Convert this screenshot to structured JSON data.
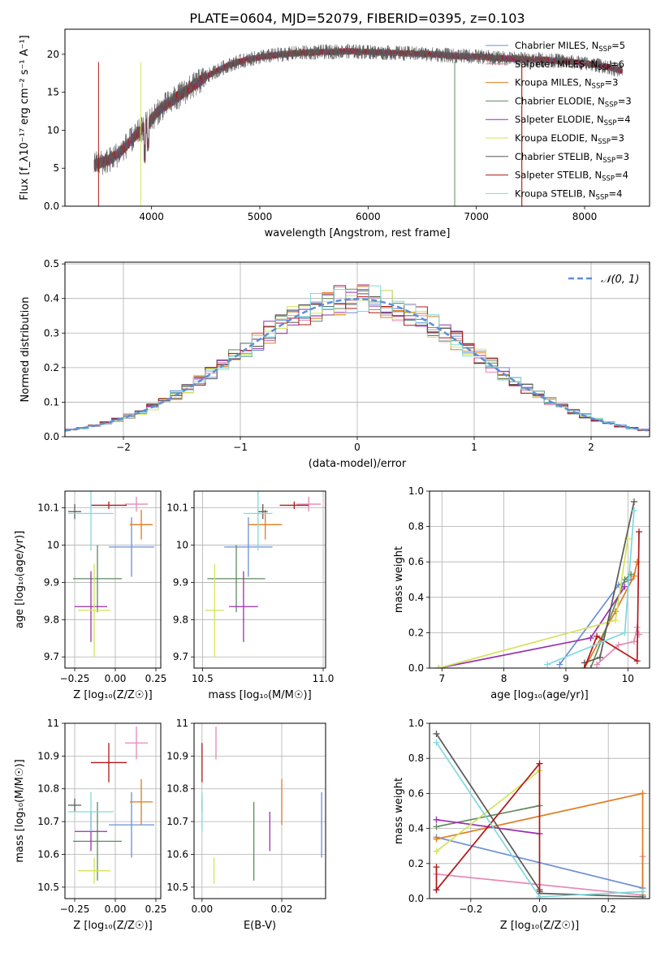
{
  "figure": {
    "title": "PLATE=0604, MJD=52079, FIBERID=0395, z=0.103"
  },
  "colors": {
    "Chabrier MILES": "#6b8fd6",
    "Salpeter MILES": "#e588b5",
    "Kroupa MILES": "#e07b1f",
    "Chabrier ELODIE": "#5f8a5f",
    "Salpeter ELODIE": "#9b2fae",
    "Kroupa ELODIE": "#d4e35a",
    "Chabrier STELIB": "#5a5a5a",
    "Salpeter STELIB": "#b01818",
    "Kroupa STELIB": "#7fd9dd"
  },
  "chart_data": [
    {
      "id": "spectrum",
      "type": "line",
      "xlabel": "wavelength [Angstrom, rest frame]",
      "ylabel": "Flux [f_λ10⁻¹⁷ erg cm⁻² s⁻¹ A⁻¹]",
      "xlim": [
        3200,
        8600
      ],
      "ylim": [
        0,
        23.3
      ],
      "xticks": [
        4000,
        5000,
        6000,
        7000,
        8000
      ],
      "yticks": [
        0,
        5,
        10,
        15,
        20
      ],
      "legend_position": "right",
      "grid": false,
      "continuum": {
        "x": [
          3470,
          3600,
          3700,
          3800,
          3900,
          4000,
          4100,
          4200,
          4300,
          4400,
          4500,
          4600,
          4700,
          4800,
          4900,
          5000,
          5200,
          5400,
          5600,
          5800,
          6000,
          6200,
          6400,
          6600,
          6800,
          7000,
          7200,
          7400,
          7600,
          7800,
          8000,
          8200,
          8350
        ],
        "y": [
          5.5,
          6.0,
          7.0,
          8.5,
          10.0,
          11.5,
          13.0,
          14.0,
          15.0,
          16.0,
          17.0,
          17.8,
          18.5,
          19.0,
          19.3,
          19.6,
          20.0,
          20.2,
          20.3,
          20.4,
          20.3,
          20.2,
          20.1,
          20.0,
          19.8,
          19.7,
          19.5,
          19.4,
          19.3,
          19.1,
          18.8,
          18.4,
          17.8
        ]
      },
      "series": [
        {
          "name": "Chabrier MILES",
          "nssp": "5"
        },
        {
          "name": "Salpeter MILES",
          "nssp": "6"
        },
        {
          "name": "Kroupa MILES",
          "nssp": "3"
        },
        {
          "name": "Chabrier ELODIE",
          "nssp": "3"
        },
        {
          "name": "Salpeter ELODIE",
          "nssp": "4"
        },
        {
          "name": "Kroupa ELODIE",
          "nssp": "3"
        },
        {
          "name": "Chabrier STELIB",
          "nssp": "3"
        },
        {
          "name": "Salpeter STELIB",
          "nssp": "4"
        },
        {
          "name": "Kroupa STELIB",
          "nssp": "4"
        }
      ]
    },
    {
      "id": "residuals",
      "type": "line",
      "xlabel": "(data-model)/error",
      "ylabel": "Normed distribution",
      "xlim": [
        -2.5,
        2.5
      ],
      "ylim": [
        0,
        0.505
      ],
      "xticks": [
        -2,
        -1,
        0,
        1,
        2
      ],
      "yticks": [
        0.0,
        0.1,
        0.2,
        0.3,
        0.4,
        0.5
      ],
      "grid": true,
      "gaussian_label": "𝒩(0, 1)",
      "bin_width": 0.1,
      "bin_start": -2.5
    },
    {
      "id": "age_vs_Z",
      "type": "scatter",
      "xlabel": "Z [log₁₀(Z/Z☉)]",
      "ylabel": "age  [log₁₀(age/yr)]",
      "xlim": [
        -0.31,
        0.28
      ],
      "ylim": [
        9.67,
        10.145
      ],
      "xticks": [
        -0.25,
        0.0,
        0.25
      ],
      "xtick_labels": [
        "−0.25",
        "0.00",
        "0.25"
      ],
      "yticks": [
        9.7,
        9.8,
        9.9,
        10.0,
        10.1
      ],
      "grid": true,
      "points": [
        {
          "series": "Chabrier MILES",
          "x": 0.1,
          "xerr": 0.14,
          "y": 9.995,
          "yerr": 0.08
        },
        {
          "series": "Salpeter MILES",
          "x": 0.13,
          "xerr": 0.07,
          "y": 10.11,
          "yerr": 0.02
        },
        {
          "series": "Kroupa MILES",
          "x": 0.16,
          "xerr": 0.07,
          "y": 10.055,
          "yerr": 0.04
        },
        {
          "series": "Chabrier ELODIE",
          "x": -0.11,
          "xerr": 0.15,
          "y": 9.91,
          "yerr": 0.09
        },
        {
          "series": "Salpeter ELODIE",
          "x": -0.15,
          "xerr": 0.1,
          "y": 9.835,
          "yerr": 0.095
        },
        {
          "series": "Kroupa ELODIE",
          "x": -0.13,
          "xerr": 0.1,
          "y": 9.825,
          "yerr": 0.125
        },
        {
          "series": "Chabrier STELIB",
          "x": -0.25,
          "xerr": 0.04,
          "y": 10.09,
          "yerr": 0.02
        },
        {
          "series": "Salpeter STELIB",
          "x": -0.04,
          "xerr": 0.11,
          "y": 10.107,
          "yerr": 0.01
        },
        {
          "series": "Kroupa STELIB",
          "x": -0.15,
          "xerr": 0.14,
          "y": 10.085,
          "yerr": 0.1
        }
      ]
    },
    {
      "id": "age_vs_mass",
      "type": "scatter",
      "xlabel": "mass [log₁₀(M/M☉)]",
      "ylabel": "",
      "xlim": [
        10.465,
        11.01
      ],
      "ylim": [
        9.67,
        10.145
      ],
      "xticks": [
        10.5,
        11.0
      ],
      "xtick_labels": [
        "10.5",
        "11.0"
      ],
      "yticks": [
        9.7,
        9.8,
        9.9,
        10.0,
        10.1
      ],
      "grid": true,
      "points": [
        {
          "series": "Chabrier MILES",
          "x": 10.69,
          "xerr": 0.1,
          "y": 9.995,
          "yerr": 0.08
        },
        {
          "series": "Salpeter MILES",
          "x": 10.94,
          "xerr": 0.05,
          "y": 10.11,
          "yerr": 0.02
        },
        {
          "series": "Kroupa MILES",
          "x": 10.76,
          "xerr": 0.07,
          "y": 10.055,
          "yerr": 0.04
        },
        {
          "series": "Chabrier ELODIE",
          "x": 10.64,
          "xerr": 0.12,
          "y": 9.91,
          "yerr": 0.09
        },
        {
          "series": "Salpeter ELODIE",
          "x": 10.67,
          "xerr": 0.06,
          "y": 9.835,
          "yerr": 0.095
        },
        {
          "series": "Kroupa ELODIE",
          "x": 10.55,
          "xerr": 0.04,
          "y": 9.825,
          "yerr": 0.125
        },
        {
          "series": "Chabrier STELIB",
          "x": 10.75,
          "xerr": 0.02,
          "y": 10.09,
          "yerr": 0.02
        },
        {
          "series": "Salpeter STELIB",
          "x": 10.88,
          "xerr": 0.06,
          "y": 10.107,
          "yerr": 0.01
        },
        {
          "series": "Kroupa STELIB",
          "x": 10.73,
          "xerr": 0.06,
          "y": 10.085,
          "yerr": 0.1
        }
      ]
    },
    {
      "id": "massweight_vs_age",
      "type": "line",
      "xlabel": "age  [log₁₀(age/yr)]",
      "ylabel": "mass weight",
      "xlim": [
        6.8,
        10.35
      ],
      "ylim": [
        0,
        1.0
      ],
      "xticks": [
        7,
        8,
        9,
        10
      ],
      "yticks": [
        0.0,
        0.2,
        0.4,
        0.6,
        0.8,
        1.0
      ],
      "grid": true,
      "series": [
        {
          "name": "Chabrier MILES",
          "x": [
            8.9,
            9.85,
            10.05
          ],
          "y": [
            0.02,
            0.47,
            0.5
          ]
        },
        {
          "name": "Salpeter MILES",
          "x": [
            9.5,
            9.85,
            10.1,
            10.15,
            10.18
          ],
          "y": [
            0.02,
            0.13,
            0.15,
            0.23,
            0.19
          ]
        },
        {
          "name": "Kroupa MILES",
          "x": [
            9.3,
            9.8,
            10.1,
            10.15
          ],
          "y": [
            0.0,
            0.32,
            0.52,
            0.6
          ]
        },
        {
          "name": "Chabrier ELODIE",
          "x": [
            9.4,
            9.95,
            10.05
          ],
          "y": [
            0.0,
            0.5,
            0.53
          ]
        },
        {
          "name": "Salpeter ELODIE",
          "x": [
            6.95,
            9.4,
            9.95
          ],
          "y": [
            0.0,
            0.17,
            0.46
          ]
        },
        {
          "name": "Kroupa ELODIE",
          "x": [
            6.95,
            9.8,
            10.0
          ],
          "y": [
            0.0,
            0.27,
            0.73
          ]
        },
        {
          "name": "Chabrier STELIB",
          "x": [
            9.3,
            9.55,
            10.1
          ],
          "y": [
            0.03,
            0.06,
            0.94
          ]
        },
        {
          "name": "Salpeter STELIB",
          "x": [
            9.3,
            9.5,
            10.15,
            10.18
          ],
          "y": [
            0.0,
            0.18,
            0.04,
            0.77
          ]
        },
        {
          "name": "Kroupa STELIB",
          "x": [
            8.7,
            9.95,
            10.1
          ],
          "y": [
            0.02,
            0.2,
            0.89
          ]
        }
      ]
    },
    {
      "id": "mass_vs_Z",
      "type": "scatter",
      "xlabel": "Z [log₁₀(Z/Z☉)]",
      "ylabel": "mass [log₁₀(M/M☉)]",
      "xlim": [
        -0.31,
        0.28
      ],
      "ylim": [
        10.465,
        11.0
      ],
      "xticks": [
        -0.25,
        0.0,
        0.25
      ],
      "xtick_labels": [
        "−0.25",
        "0.00",
        "0.25"
      ],
      "yticks": [
        10.5,
        10.6,
        10.7,
        10.8,
        10.9,
        11.0
      ],
      "grid": true,
      "points": [
        {
          "series": "Chabrier MILES",
          "x": 0.1,
          "xerr": 0.14,
          "y": 10.69,
          "yerr": 0.1
        },
        {
          "series": "Salpeter MILES",
          "x": 0.13,
          "xerr": 0.07,
          "y": 10.94,
          "yerr": 0.05
        },
        {
          "series": "Kroupa MILES",
          "x": 0.16,
          "xerr": 0.07,
          "y": 10.76,
          "yerr": 0.07
        },
        {
          "series": "Chabrier ELODIE",
          "x": -0.11,
          "xerr": 0.15,
          "y": 10.64,
          "yerr": 0.12
        },
        {
          "series": "Salpeter ELODIE",
          "x": -0.15,
          "xerr": 0.1,
          "y": 10.67,
          "yerr": 0.06
        },
        {
          "series": "Kroupa ELODIE",
          "x": -0.13,
          "xerr": 0.1,
          "y": 10.55,
          "yerr": 0.04
        },
        {
          "series": "Chabrier STELIB",
          "x": -0.25,
          "xerr": 0.04,
          "y": 10.75,
          "yerr": 0.02
        },
        {
          "series": "Salpeter STELIB",
          "x": -0.04,
          "xerr": 0.11,
          "y": 10.88,
          "yerr": 0.06
        },
        {
          "series": "Kroupa STELIB",
          "x": -0.15,
          "xerr": 0.14,
          "y": 10.73,
          "yerr": 0.06
        }
      ]
    },
    {
      "id": "mass_vs_ebv",
      "type": "scatter",
      "xlabel": "E(B-V)",
      "ylabel": "",
      "xlim": [
        -0.002,
        0.031
      ],
      "ylim": [
        10.465,
        11.0
      ],
      "xticks": [
        0.0,
        0.02
      ],
      "xtick_labels": [
        "0.00",
        "0.02"
      ],
      "yticks": [
        10.5,
        10.6,
        10.7,
        10.8,
        10.9,
        11.0
      ],
      "grid": true,
      "points": [
        {
          "series": "Chabrier MILES",
          "x": 0.03,
          "y": 10.69,
          "yerr": 0.1
        },
        {
          "series": "Salpeter MILES",
          "x": 0.0035,
          "y": 10.94,
          "yerr": 0.05
        },
        {
          "series": "Kroupa MILES",
          "x": 0.02,
          "y": 10.76,
          "yerr": 0.07
        },
        {
          "series": "Chabrier ELODIE",
          "x": 0.013,
          "y": 10.64,
          "yerr": 0.12
        },
        {
          "series": "Salpeter ELODIE",
          "x": 0.017,
          "y": 10.67,
          "yerr": 0.06
        },
        {
          "series": "Kroupa ELODIE",
          "x": 0.003,
          "y": 10.55,
          "yerr": 0.04
        },
        {
          "series": "Chabrier STELIB",
          "x": 0.0,
          "y": 10.75,
          "yerr": 0.02
        },
        {
          "series": "Salpeter STELIB",
          "x": 0.0,
          "y": 10.88,
          "yerr": 0.06
        },
        {
          "series": "Kroupa STELIB",
          "x": 0.0,
          "y": 10.73,
          "yerr": 0.06
        }
      ]
    },
    {
      "id": "massweight_vs_Z",
      "type": "line",
      "xlabel": "Z [log₁₀(Z/Z☉)]",
      "ylabel": "mass weight",
      "xlim": [
        -0.32,
        0.32
      ],
      "ylim": [
        0,
        1.0
      ],
      "xticks": [
        -0.2,
        0.0,
        0.2
      ],
      "xtick_labels": [
        "−0.2",
        "0.0",
        "0.2"
      ],
      "yticks": [
        0.0,
        0.2,
        0.4,
        0.6,
        0.8,
        1.0
      ],
      "grid": true,
      "series": [
        {
          "name": "Chabrier MILES",
          "x": [
            -0.3,
            0.3
          ],
          "y": [
            0.35,
            0.06
          ]
        },
        {
          "name": "Salpeter MILES",
          "x": [
            -0.3,
            0.3,
            0.3
          ],
          "y": [
            0.14,
            0.02,
            0.24
          ]
        },
        {
          "name": "Kroupa MILES",
          "x": [
            -0.3,
            0.3,
            0.3
          ],
          "y": [
            0.34,
            0.6,
            0.02
          ]
        },
        {
          "name": "Chabrier ELODIE",
          "x": [
            -0.3,
            0.0
          ],
          "y": [
            0.41,
            0.53
          ]
        },
        {
          "name": "Salpeter ELODIE",
          "x": [
            -0.3,
            0.0
          ],
          "y": [
            0.45,
            0.37
          ]
        },
        {
          "name": "Kroupa ELODIE",
          "x": [
            -0.3,
            0.0
          ],
          "y": [
            0.27,
            0.73
          ]
        },
        {
          "name": "Chabrier STELIB",
          "x": [
            -0.3,
            0.0,
            0.0,
            0.3
          ],
          "y": [
            0.94,
            0.05,
            0.03,
            0.01
          ]
        },
        {
          "name": "Salpeter STELIB",
          "x": [
            -0.3,
            -0.3,
            0.0,
            0.0
          ],
          "y": [
            0.18,
            0.05,
            0.77,
            0.04
          ]
        },
        {
          "name": "Kroupa STELIB",
          "x": [
            -0.3,
            0.0,
            0.3
          ],
          "y": [
            0.89,
            0.01,
            0.04
          ]
        }
      ]
    }
  ]
}
